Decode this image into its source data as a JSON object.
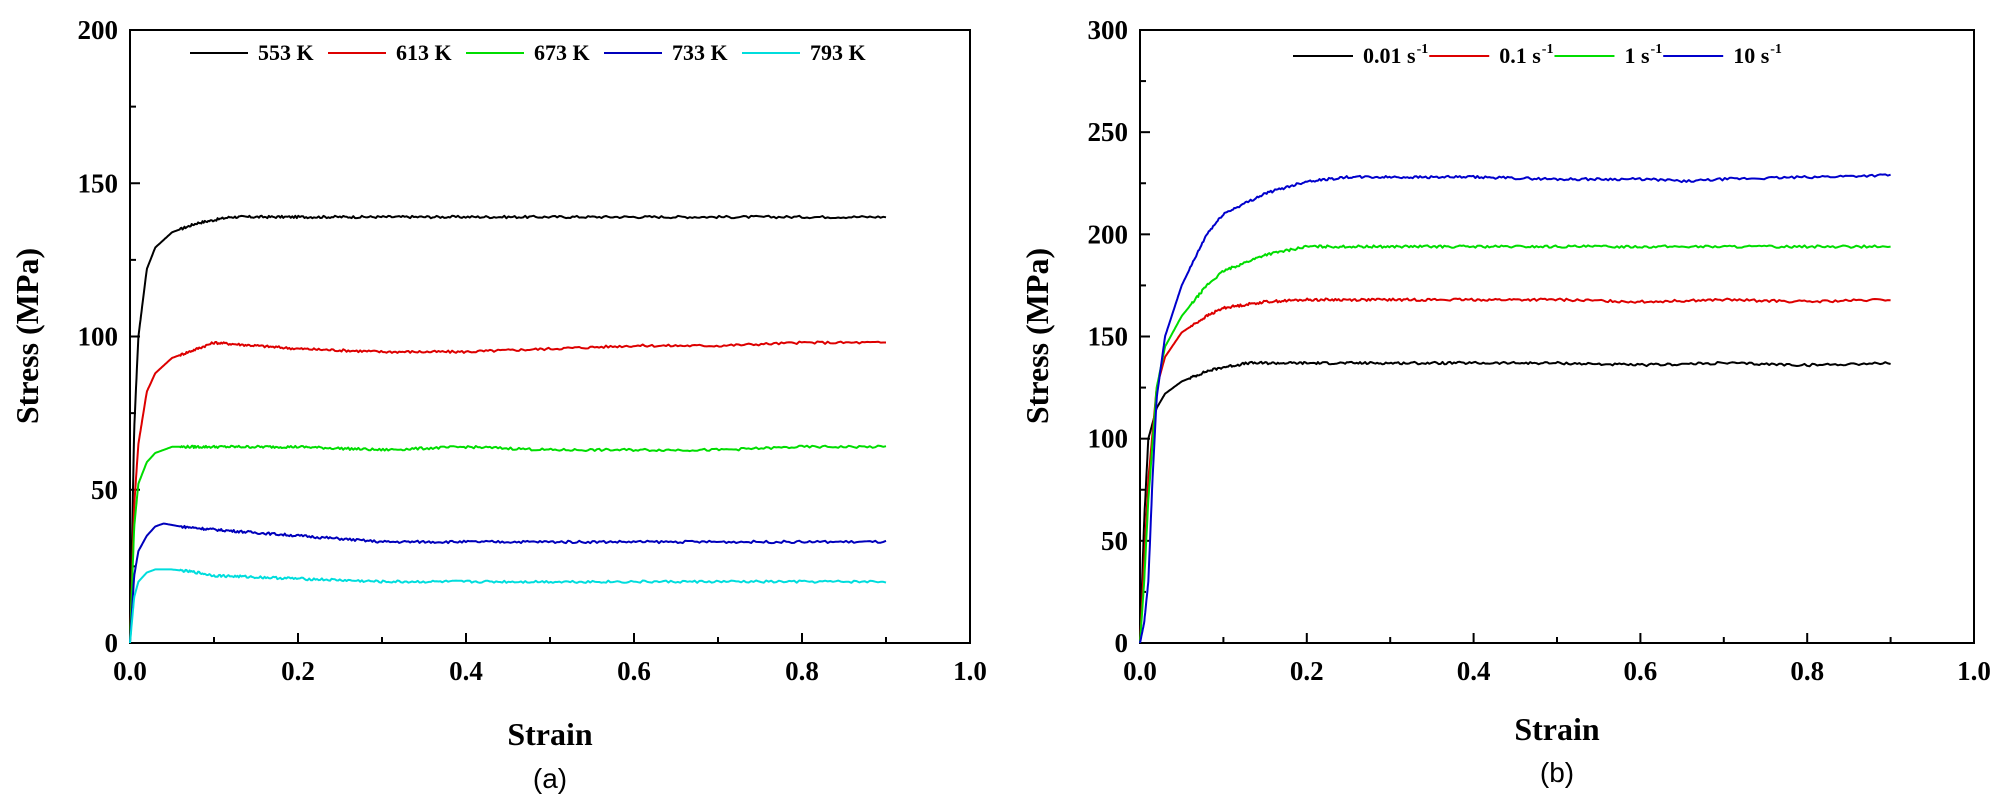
{
  "chart_data": [
    {
      "type": "line",
      "panel_label": "(a)",
      "xlabel": "Strain",
      "ylabel": "Stress (MPa)",
      "xlim": [
        0,
        1.0
      ],
      "ylim": [
        0,
        200
      ],
      "xticks": [
        "0.0",
        "0.2",
        "0.4",
        "0.6",
        "0.8",
        "1.0"
      ],
      "yticks": [
        "0",
        "50",
        "100",
        "150",
        "200"
      ],
      "legend_position": "top",
      "series": [
        {
          "name": "553 K",
          "color": "#000000",
          "x": [
            0,
            0.005,
            0.01,
            0.02,
            0.03,
            0.05,
            0.08,
            0.1,
            0.12,
            0.15,
            0.2,
            0.3,
            0.4,
            0.5,
            0.6,
            0.7,
            0.8,
            0.9
          ],
          "y": [
            0,
            70,
            100,
            122,
            129,
            134,
            137,
            138,
            139,
            139,
            139,
            139,
            139,
            139,
            139,
            139,
            139,
            139
          ]
        },
        {
          "name": "613 K",
          "color": "#dd0000",
          "x": [
            0,
            0.005,
            0.01,
            0.02,
            0.03,
            0.05,
            0.08,
            0.1,
            0.15,
            0.2,
            0.3,
            0.4,
            0.5,
            0.6,
            0.7,
            0.8,
            0.9
          ],
          "y": [
            0,
            45,
            65,
            82,
            88,
            93,
            96,
            98,
            97,
            96,
            95,
            95,
            96,
            97,
            97,
            98,
            98
          ]
        },
        {
          "name": "673 K",
          "color": "#00dd00",
          "x": [
            0,
            0.005,
            0.01,
            0.02,
            0.03,
            0.05,
            0.07,
            0.1,
            0.2,
            0.3,
            0.4,
            0.5,
            0.6,
            0.7,
            0.8,
            0.9
          ],
          "y": [
            0,
            38,
            52,
            59,
            62,
            64,
            64,
            64,
            64,
            63,
            64,
            63,
            63,
            63,
            64,
            64
          ]
        },
        {
          "name": "733 K",
          "color": "#0000bb",
          "x": [
            0,
            0.005,
            0.01,
            0.02,
            0.03,
            0.04,
            0.06,
            0.1,
            0.2,
            0.3,
            0.4,
            0.5,
            0.6,
            0.7,
            0.8,
            0.9
          ],
          "y": [
            0,
            22,
            30,
            35,
            38,
            39,
            38,
            37,
            35,
            33,
            33,
            33,
            33,
            33,
            33,
            33
          ]
        },
        {
          "name": "793 K",
          "color": "#00dddd",
          "x": [
            0,
            0.005,
            0.01,
            0.02,
            0.03,
            0.05,
            0.08,
            0.1,
            0.2,
            0.3,
            0.4,
            0.5,
            0.6,
            0.7,
            0.8,
            0.9
          ],
          "y": [
            0,
            15,
            20,
            23,
            24,
            24,
            23,
            22,
            21,
            20,
            20,
            20,
            20,
            20,
            20,
            20
          ]
        }
      ]
    },
    {
      "type": "line",
      "panel_label": "(b)",
      "xlabel": "Strain",
      "ylabel": "Stress (MPa)",
      "xlim": [
        0,
        1.0
      ],
      "ylim": [
        0,
        300
      ],
      "xticks": [
        "0.0",
        "0.2",
        "0.4",
        "0.6",
        "0.8",
        "1.0"
      ],
      "yticks": [
        "0",
        "50",
        "100",
        "150",
        "200",
        "250",
        "300"
      ],
      "legend_position": "top",
      "series": [
        {
          "name": "0.01 s",
          "sup": "-1",
          "color": "#000000",
          "x": [
            0,
            0.005,
            0.01,
            0.02,
            0.03,
            0.05,
            0.08,
            0.1,
            0.13,
            0.2,
            0.3,
            0.4,
            0.5,
            0.6,
            0.7,
            0.8,
            0.9
          ],
          "y": [
            0,
            60,
            100,
            115,
            122,
            128,
            133,
            135,
            137,
            137,
            137,
            137,
            137,
            136,
            137,
            136,
            137
          ]
        },
        {
          "name": "0.1 s",
          "sup": "-1",
          "color": "#dd0000",
          "x": [
            0,
            0.005,
            0.01,
            0.02,
            0.03,
            0.05,
            0.08,
            0.1,
            0.15,
            0.2,
            0.3,
            0.4,
            0.5,
            0.6,
            0.7,
            0.8,
            0.9
          ],
          "y": [
            0,
            40,
            80,
            125,
            140,
            152,
            160,
            164,
            167,
            168,
            168,
            168,
            168,
            167,
            168,
            167,
            168
          ]
        },
        {
          "name": "1 s",
          "sup": "-1",
          "color": "#00dd00",
          "x": [
            0,
            0.005,
            0.01,
            0.02,
            0.03,
            0.05,
            0.08,
            0.1,
            0.15,
            0.2,
            0.3,
            0.4,
            0.5,
            0.6,
            0.7,
            0.8,
            0.9
          ],
          "y": [
            0,
            30,
            70,
            125,
            145,
            160,
            175,
            182,
            190,
            194,
            194,
            194,
            194,
            194,
            194,
            194,
            194
          ]
        },
        {
          "name": "10 s",
          "sup": "-1",
          "color": "#0000cc",
          "x": [
            0,
            0.005,
            0.01,
            0.015,
            0.02,
            0.03,
            0.05,
            0.08,
            0.1,
            0.15,
            0.2,
            0.25,
            0.3,
            0.4,
            0.5,
            0.6,
            0.66,
            0.7,
            0.8,
            0.9
          ],
          "y": [
            0,
            10,
            30,
            80,
            120,
            150,
            175,
            200,
            210,
            220,
            226,
            228,
            228,
            228,
            227,
            227,
            226,
            227,
            228,
            229
          ]
        }
      ]
    }
  ]
}
